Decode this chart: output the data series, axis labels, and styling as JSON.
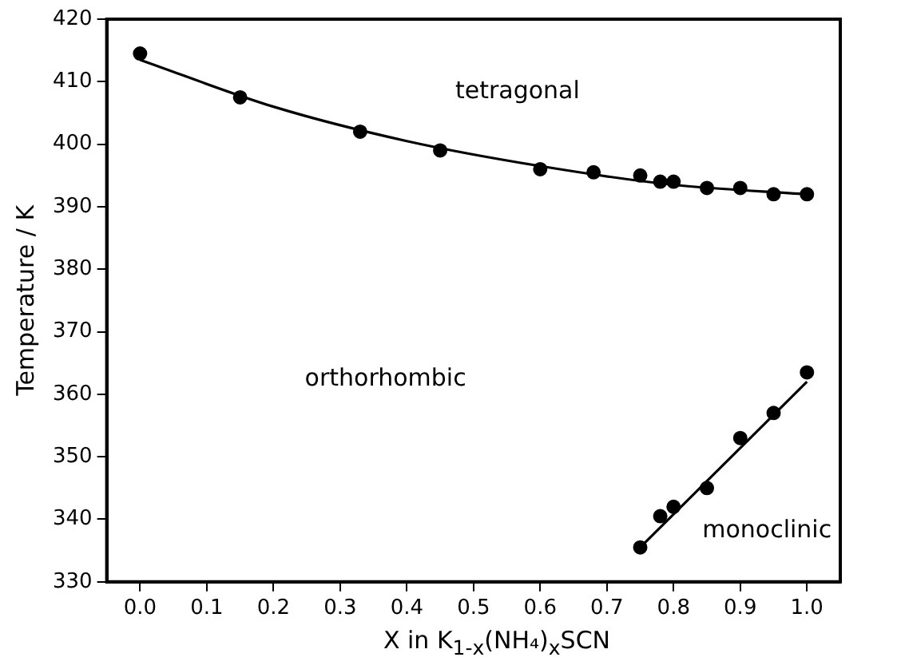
{
  "chart_data": {
    "type": "scatter",
    "xlabel": "X  in K$_{1-x}$(NH₄)$_{x}$SCN",
    "ylabel": "Temperature / K",
    "xlim": [
      -0.05,
      1.05
    ],
    "ylim": [
      330,
      420
    ],
    "xticks": [
      {
        "value": 0,
        "label": "0.0"
      },
      {
        "value": 0.1,
        "label": "0.1"
      },
      {
        "value": 0.2,
        "label": "0.2"
      },
      {
        "value": 0.3,
        "label": "0.3"
      },
      {
        "value": 0.4,
        "label": "0.4"
      },
      {
        "value": 0.5,
        "label": "0.5"
      },
      {
        "value": 0.6,
        "label": "0.6"
      },
      {
        "value": 0.7,
        "label": "0.7"
      },
      {
        "value": 0.8,
        "label": "0.8"
      },
      {
        "value": 0.9,
        "label": "0.9"
      },
      {
        "value": 1,
        "label": "1.0"
      }
    ],
    "yticks": [
      330,
      340,
      350,
      360,
      370,
      380,
      390,
      400,
      410,
      420
    ],
    "grid": false,
    "legend": false,
    "marker": "circle",
    "series": [
      {
        "color": "#000000",
        "x": [
          0,
          0.15,
          0.33,
          0.45,
          0.6,
          0.68,
          0.75,
          0.78,
          0.8,
          0.85,
          0.9,
          0.95,
          1.0
        ],
        "values": [
          414.5,
          407.5,
          402,
          399,
          396,
          395.5,
          395,
          394,
          394,
          393,
          393,
          392,
          392
        ]
      },
      {
        "type": "line",
        "color": "#000000",
        "marker": "none",
        "x": [
          0,
          0.2,
          0.4,
          0.6,
          0.8,
          1.0
        ],
        "values": [
          413.5,
          406,
          400.5,
          396.5,
          393.5,
          392
        ]
      },
      {
        "color": "#000000",
        "x": [
          0.75,
          0.78,
          0.8,
          0.85,
          0.9,
          0.95,
          1.0
        ],
        "values": [
          335.5,
          340.5,
          342,
          345,
          353,
          357,
          363.5
        ]
      },
      {
        "type": "line",
        "color": "#000000",
        "marker": "none",
        "x": [
          0.75,
          1.0
        ],
        "values": [
          335.5,
          362
        ]
      }
    ],
    "annotations": [
      "tetragonal",
      "orthorhombic",
      "monoclinic"
    ]
  }
}
